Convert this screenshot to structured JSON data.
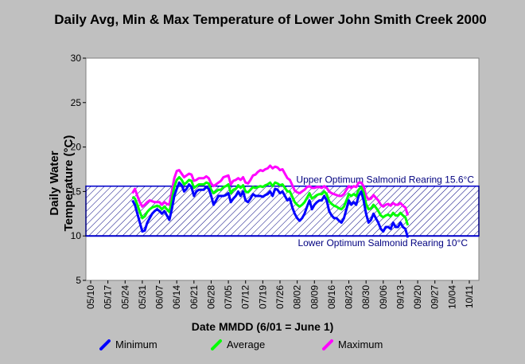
{
  "chart_data": {
    "type": "line",
    "title": "Daily Avg, Min & Max Temperature of Lower John Smith Creek 2000",
    "xlabel": "Date MMDD (6/01 = June 1)",
    "ylabel": "Daily Water Temperature (°C)",
    "ylim": [
      5,
      30
    ],
    "yticks": [
      5,
      10,
      15,
      20,
      25,
      30
    ],
    "x_ticks": [
      "05/10",
      "05/17",
      "05/24",
      "05/31",
      "06/07",
      "06/14",
      "06/21",
      "06/28",
      "07/05",
      "07/12",
      "07/19",
      "07/26",
      "08/02",
      "08/09",
      "08/16",
      "08/23",
      "08/30",
      "09/06",
      "09/13",
      "09/20",
      "09/27",
      "10/04",
      "10/11"
    ],
    "x_start_label": "05/10",
    "band": {
      "upper": 15.6,
      "lower": 10,
      "upper_label": "Upper Optimum Salmonid Rearing 15.6°C",
      "lower_label": "Lower Optimum Salmonid Rearing 10°C"
    },
    "series": [
      {
        "name": "Minimum",
        "color": "#0000ff",
        "start_offset": 17,
        "values": [
          14,
          13.5,
          12.5,
          11.5,
          10.5,
          10.6,
          11.5,
          12,
          12.5,
          12.8,
          13,
          12.8,
          12.5,
          12.8,
          12.3,
          11.8,
          13,
          14.5,
          15.3,
          16,
          15.7,
          15,
          15.3,
          15.8,
          15.5,
          14.5,
          15,
          15.2,
          15.2,
          15.2,
          15.5,
          15.3,
          14.5,
          13.5,
          14,
          14.5,
          14.5,
          14.5,
          14.6,
          14.8,
          13.8,
          14.2,
          14.5,
          15,
          14.5,
          15,
          14,
          13.8,
          14.2,
          14.7,
          14.5,
          14.5,
          14.5,
          14.4,
          14.6,
          14.7,
          15,
          14.5,
          15.3,
          15.2,
          14.8,
          15,
          14.5,
          14,
          14.2,
          13.2,
          12.5,
          12,
          11.7,
          12,
          12.5,
          13.3,
          14,
          13,
          13.5,
          13.8,
          14,
          14,
          14.5,
          14,
          12.8,
          12.3,
          12,
          12,
          11.7,
          11.5,
          12,
          13,
          14,
          13.5,
          13.8,
          13.5,
          14.5,
          15,
          14,
          12.5,
          11.5,
          11.8,
          12.5,
          12,
          11.5,
          10.8,
          10.5,
          11,
          11,
          10.8,
          11.5,
          11,
          11,
          11.5,
          11,
          10.8,
          9.8
        ]
      },
      {
        "name": "Average",
        "color": "#00ff00",
        "start_offset": 17,
        "values": [
          14.4,
          14.2,
          13.5,
          12.7,
          12,
          12.2,
          12.7,
          13,
          13.2,
          13.3,
          13.4,
          13.3,
          13,
          13.3,
          13,
          12.7,
          14,
          15.5,
          16.3,
          16.6,
          16.3,
          15.8,
          16,
          16.3,
          16.2,
          15.4,
          15.6,
          15.8,
          15.8,
          15.8,
          16,
          15.9,
          15.2,
          14.8,
          15,
          15.2,
          15.2,
          15.5,
          15.6,
          15.8,
          14.8,
          15.2,
          15.3,
          15.7,
          15.4,
          15.7,
          15,
          14.9,
          15.2,
          15.5,
          15.4,
          15.5,
          15.6,
          15.5,
          15.7,
          15.8,
          16,
          15.6,
          16,
          15.9,
          15.7,
          15.8,
          15.4,
          15,
          15,
          14.4,
          13.8,
          13.5,
          13.3,
          13.5,
          13.8,
          14.3,
          14.8,
          14.2,
          14.4,
          14.6,
          14.7,
          14.7,
          15,
          14.7,
          13.9,
          13.6,
          13.4,
          13.3,
          13.1,
          13,
          13.3,
          14,
          14.7,
          14.5,
          14.7,
          14.5,
          15.2,
          15.5,
          14.9,
          13.6,
          13,
          13.1,
          13.5,
          13.2,
          12.8,
          12.3,
          12.1,
          12.3,
          12.4,
          12.2,
          12.6,
          12.3,
          12.3,
          12.6,
          12.3,
          12.1,
          11.2
        ]
      },
      {
        "name": "Maximum",
        "color": "#ff00ff",
        "start_offset": 17,
        "values": [
          14.8,
          15.3,
          14.5,
          13.8,
          13.3,
          13.5,
          13.8,
          14,
          13.9,
          13.8,
          13.8,
          13.8,
          13.5,
          13.8,
          13.6,
          13.5,
          15,
          16.5,
          17.3,
          17.4,
          17,
          16.6,
          16.8,
          17,
          16.9,
          16.2,
          16.3,
          16.5,
          16.5,
          16.5,
          16.7,
          16.5,
          15.9,
          15.6,
          15.8,
          16,
          16.2,
          16.6,
          16.7,
          16.8,
          15.8,
          16.2,
          16.3,
          16.5,
          16.3,
          16.6,
          16,
          15.9,
          16.3,
          16.8,
          16.9,
          17.2,
          17.4,
          17.3,
          17.5,
          17.6,
          17.9,
          17.6,
          17.8,
          17.7,
          17.4,
          17.5,
          17,
          16.5,
          16.3,
          15.7,
          15.1,
          14.9,
          14.8,
          15,
          15.2,
          15.5,
          15.6,
          15.4,
          15.4,
          15.5,
          15.5,
          15.4,
          15.6,
          15.4,
          15,
          14.8,
          14.7,
          14.6,
          14.5,
          14.5,
          14.7,
          15.2,
          15.6,
          15.4,
          15.6,
          15.5,
          16,
          16,
          15.6,
          14.5,
          14.1,
          14.2,
          14.6,
          14.3,
          14,
          13.5,
          13.3,
          13.5,
          13.6,
          13.4,
          13.7,
          13.5,
          13.5,
          13.7,
          13.4,
          13.2,
          12.3
        ]
      }
    ],
    "grid": false,
    "legend_position": "bottom"
  }
}
